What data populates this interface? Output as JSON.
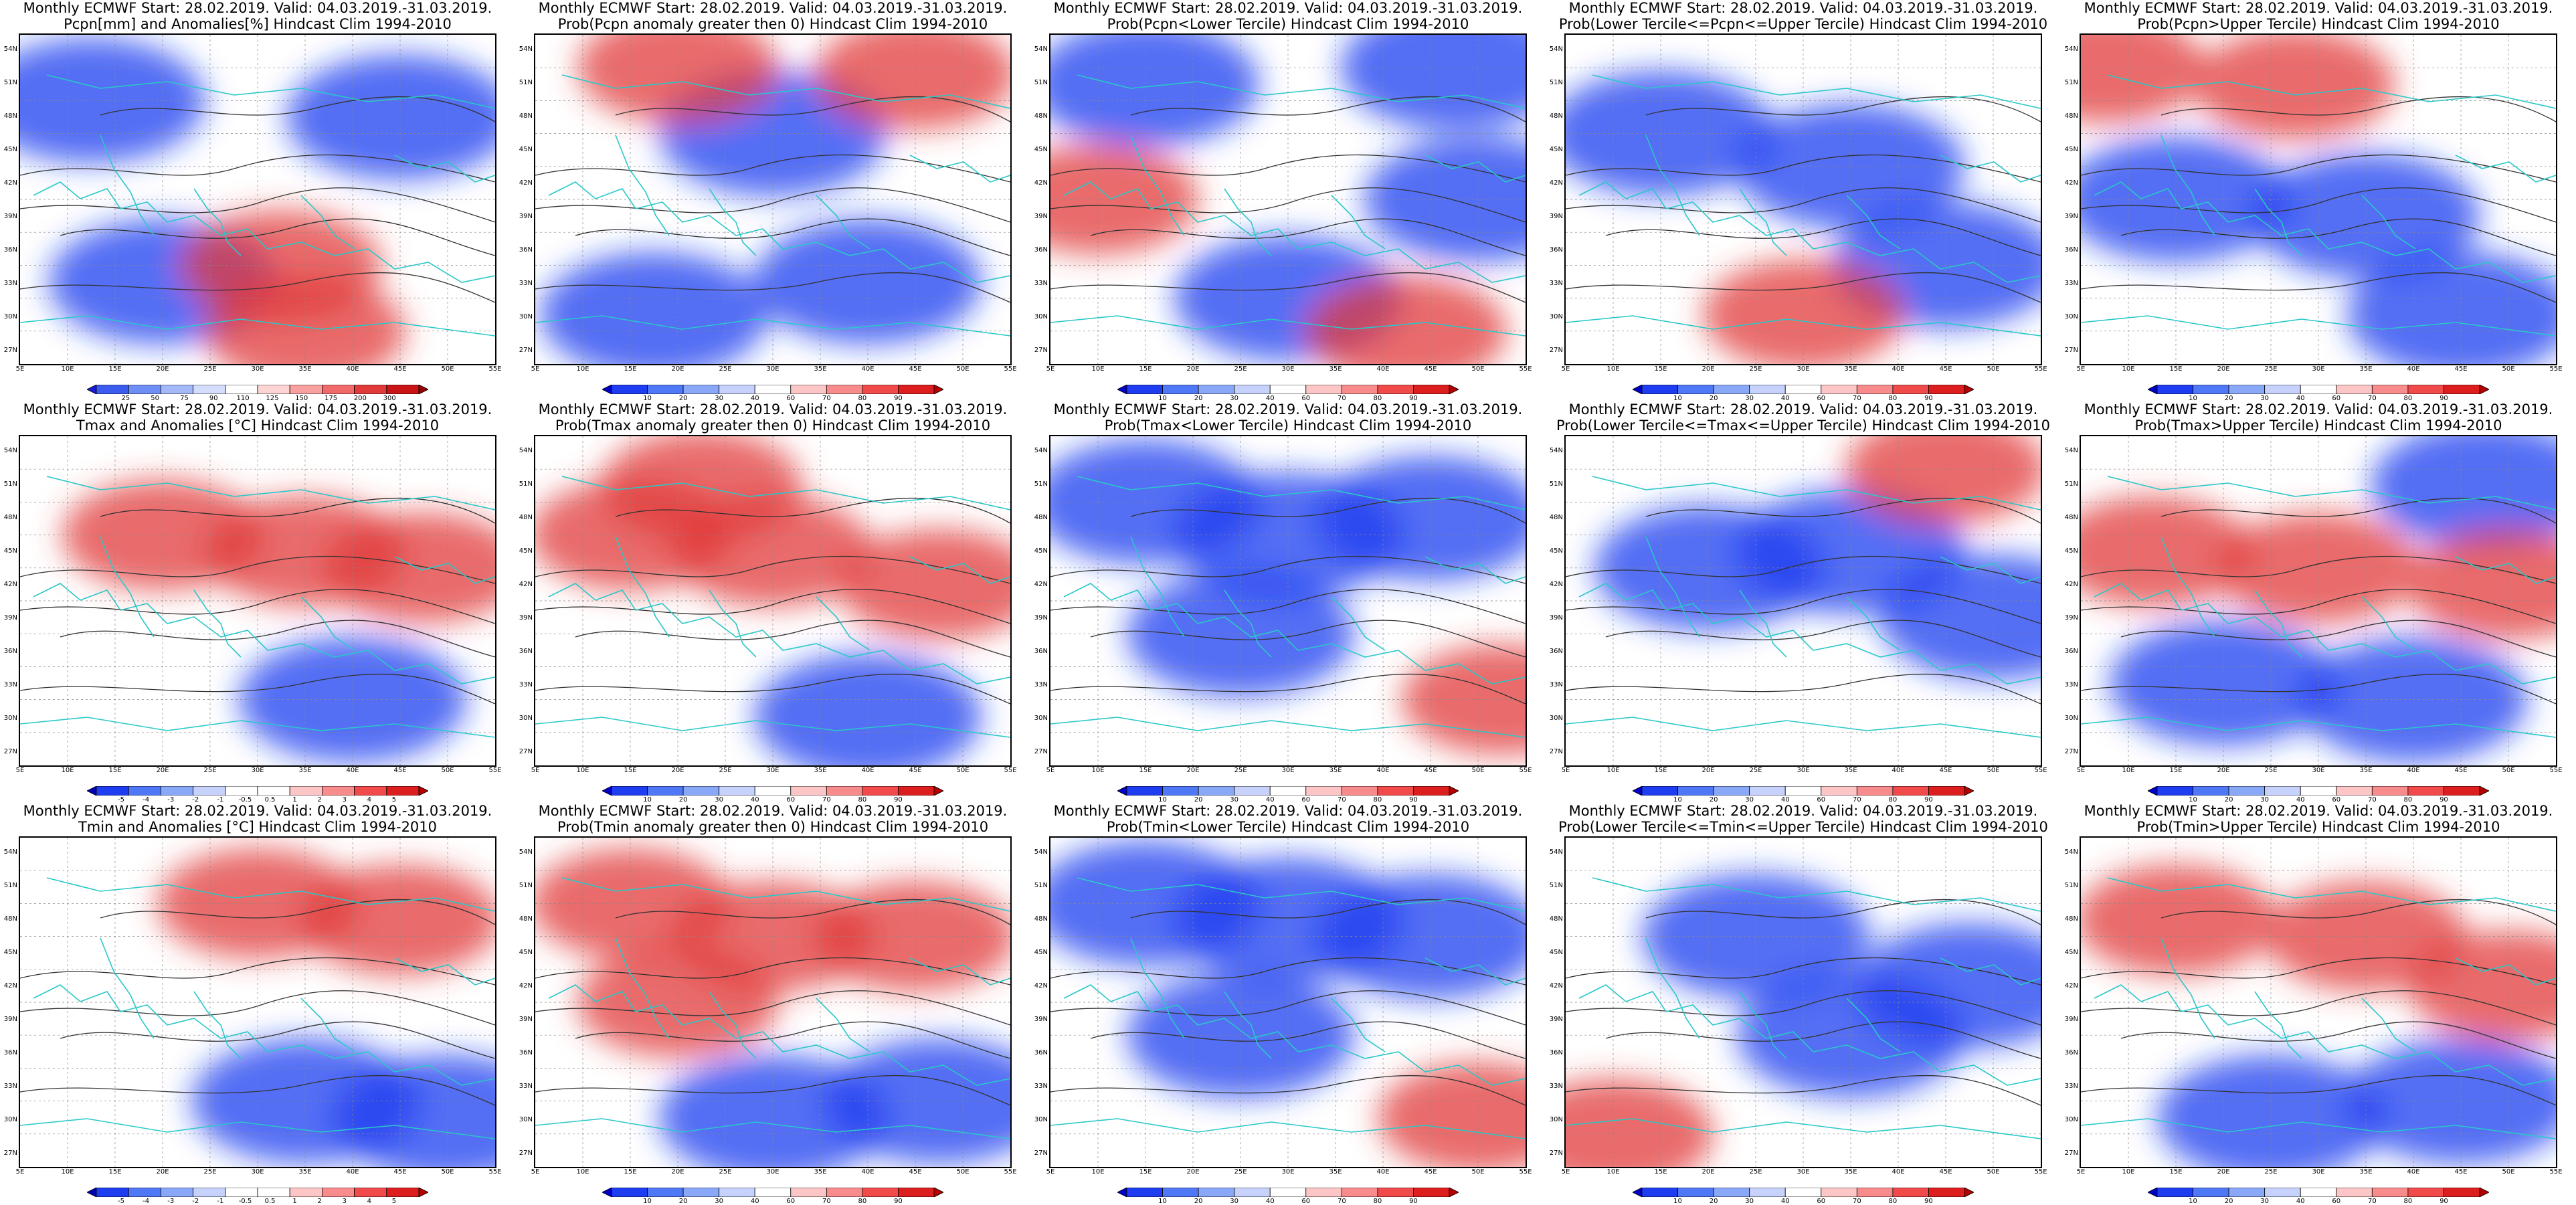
{
  "panels": [
    {
      "id": "p11",
      "row": 0,
      "col": 0,
      "title1": "Monthly ECMWF Start: 28.02.2019. Valid: 04.03.2019.-31.03.2019.",
      "title2": "Pcpn[mm] and Anomalies[%] Hindcast Clim 1994-2010",
      "scale": "pcpn",
      "hot": [
        [
          0.6,
          0.9
        ],
        [
          0.55,
          0.7
        ]
      ],
      "cold": [
        [
          0.15,
          0.2
        ],
        [
          0.8,
          0.25
        ],
        [
          0.3,
          0.75
        ]
      ]
    },
    {
      "id": "p12",
      "row": 0,
      "col": 1,
      "title1": "Monthly ECMWF Start: 28.02.2019. Valid: 04.03.2019.-31.03.2019.",
      "title2": "Prob(Pcpn anomaly greater then 0) Hindcast Clim 1994-2010",
      "scale": "prob",
      "hot": [
        [
          0.3,
          0.1
        ],
        [
          0.8,
          0.12
        ]
      ],
      "cold": [
        [
          0.25,
          0.85
        ],
        [
          0.7,
          0.75
        ],
        [
          0.5,
          0.3
        ]
      ]
    },
    {
      "id": "p13",
      "row": 0,
      "col": 2,
      "title1": "Monthly ECMWF Start: 28.02.2019. Valid: 04.03.2019.-31.03.2019.",
      "title2": "Prob(Pcpn<Lower Tercile) Hindcast Clim 1994-2010",
      "scale": "prob",
      "hot": [
        [
          0.1,
          0.5
        ],
        [
          0.75,
          0.9
        ]
      ],
      "cold": [
        [
          0.2,
          0.15
        ],
        [
          0.85,
          0.1
        ],
        [
          0.5,
          0.8
        ],
        [
          0.9,
          0.5
        ]
      ]
    },
    {
      "id": "p14",
      "row": 0,
      "col": 3,
      "title1": "Monthly ECMWF Start: 28.02.2019. Valid: 04.03.2019.-31.03.2019.",
      "title2": "Prob(Lower Tercile<=Pcpn<=Upper Tercile) Hindcast Clim 1994-2010",
      "scale": "prob",
      "hot": [
        [
          0.5,
          0.85
        ]
      ],
      "cold": [
        [
          0.2,
          0.3
        ],
        [
          0.6,
          0.4
        ],
        [
          0.8,
          0.7
        ]
      ]
    },
    {
      "id": "p15",
      "row": 0,
      "col": 4,
      "title1": "Monthly ECMWF Start: 28.02.2019. Valid: 04.03.2019.-31.03.2019.",
      "title2": "Prob(Pcpn>Upper Tercile) Hindcast Clim 1994-2010",
      "scale": "prob",
      "hot": [
        [
          0.05,
          0.1
        ],
        [
          0.45,
          0.15
        ]
      ],
      "cold": [
        [
          0.2,
          0.5
        ],
        [
          0.6,
          0.55
        ],
        [
          0.8,
          0.85
        ]
      ]
    },
    {
      "id": "p21",
      "row": 1,
      "col": 0,
      "title1": "Monthly ECMWF Start: 28.02.2019. Valid: 04.03.2019.-31.03.2019.",
      "title2": "Tmax and Anomalies [°C] Hindcast Clim 1994-2010",
      "scale": "temp",
      "hot": [
        [
          0.3,
          0.3
        ],
        [
          0.6,
          0.35
        ],
        [
          0.85,
          0.4
        ]
      ],
      "cold": [
        [
          0.7,
          0.8
        ]
      ]
    },
    {
      "id": "p22",
      "row": 1,
      "col": 1,
      "title1": "Monthly ECMWF Start: 28.02.2019. Valid: 04.03.2019.-31.03.2019.",
      "title2": "Prob(Tmax anomaly greater then 0) Hindcast Clim 1994-2010",
      "scale": "prob",
      "hot": [
        [
          0.2,
          0.3
        ],
        [
          0.5,
          0.35
        ],
        [
          0.85,
          0.45
        ],
        [
          0.35,
          0.15
        ]
      ],
      "cold": [
        [
          0.7,
          0.85
        ]
      ]
    },
    {
      "id": "p23",
      "row": 1,
      "col": 2,
      "title1": "Monthly ECMWF Start: 28.02.2019. Valid: 04.03.2019.-31.03.2019.",
      "title2": "Prob(Tmax<Lower Tercile) Hindcast Clim 1994-2010",
      "scale": "prob",
      "hot": [
        [
          0.95,
          0.8
        ]
      ],
      "cold": [
        [
          0.2,
          0.2
        ],
        [
          0.5,
          0.3
        ],
        [
          0.8,
          0.25
        ],
        [
          0.4,
          0.6
        ]
      ]
    },
    {
      "id": "p24",
      "row": 1,
      "col": 3,
      "title1": "Monthly ECMWF Start: 28.02.2019. Valid: 04.03.2019.-31.03.2019.",
      "title2": "Prob(Lower Tercile<=Tmax<=Upper Tercile) Hindcast Clim 1994-2010",
      "scale": "prob",
      "hot": [
        [
          0.8,
          0.1
        ]
      ],
      "cold": [
        [
          0.3,
          0.4
        ],
        [
          0.6,
          0.35
        ],
        [
          0.9,
          0.55
        ]
      ]
    },
    {
      "id": "p25",
      "row": 1,
      "col": 4,
      "title1": "Monthly ECMWF Start: 28.02.2019. Valid: 04.03.2019.-31.03.2019.",
      "title2": "Prob(Tmax>Upper Tercile) Hindcast Clim 1994-2010",
      "scale": "prob",
      "hot": [
        [
          0.15,
          0.35
        ],
        [
          0.5,
          0.4
        ],
        [
          0.9,
          0.45
        ]
      ],
      "cold": [
        [
          0.3,
          0.75
        ],
        [
          0.7,
          0.8
        ],
        [
          0.85,
          0.15
        ]
      ]
    },
    {
      "id": "p31",
      "row": 2,
      "col": 0,
      "title1": "Monthly ECMWF Start: 28.02.2019. Valid: 04.03.2019.-31.03.2019.",
      "title2": "Tmin and Anomalies [°C] Hindcast Clim 1994-2010",
      "scale": "temp",
      "hot": [
        [
          0.5,
          0.2
        ],
        [
          0.8,
          0.25
        ]
      ],
      "cold": [
        [
          0.6,
          0.8
        ],
        [
          0.9,
          0.85
        ]
      ]
    },
    {
      "id": "p32",
      "row": 2,
      "col": 1,
      "title1": "Monthly ECMWF Start: 28.02.2019. Valid: 04.03.2019.-31.03.2019.",
      "title2": "Prob(Tmin anomaly greater then 0) Hindcast Clim 1994-2010",
      "scale": "prob",
      "hot": [
        [
          0.2,
          0.2
        ],
        [
          0.5,
          0.3
        ],
        [
          0.8,
          0.3
        ],
        [
          0.3,
          0.5
        ]
      ],
      "cold": [
        [
          0.85,
          0.8
        ],
        [
          0.5,
          0.85
        ]
      ]
    },
    {
      "id": "p33",
      "row": 2,
      "col": 2,
      "title1": "Monthly ECMWF Start: 28.02.2019. Valid: 04.03.2019.-31.03.2019.",
      "title2": "Prob(Tmin<Lower Tercile) Hindcast Clim 1994-2010",
      "scale": "prob",
      "hot": [
        [
          0.9,
          0.85
        ]
      ],
      "cold": [
        [
          0.2,
          0.2
        ],
        [
          0.5,
          0.25
        ],
        [
          0.8,
          0.3
        ],
        [
          0.4,
          0.6
        ]
      ]
    },
    {
      "id": "p34",
      "row": 2,
      "col": 3,
      "title1": "Monthly ECMWF Start: 28.02.2019. Valid: 04.03.2019.-31.03.2019.",
      "title2": "Prob(Lower Tercile<=Tmin<=Upper Tercile) Hindcast Clim 1994-2010",
      "scale": "prob",
      "hot": [
        [
          0.1,
          0.9
        ]
      ],
      "cold": [
        [
          0.4,
          0.3
        ],
        [
          0.85,
          0.45
        ],
        [
          0.6,
          0.6
        ]
      ]
    },
    {
      "id": "p35",
      "row": 2,
      "col": 4,
      "title1": "Monthly ECMWF Start: 28.02.2019. Valid: 04.03.2019.-31.03.2019.",
      "title2": "Prob(Tmin>Upper Tercile) Hindcast Clim 1994-2010",
      "scale": "prob",
      "hot": [
        [
          0.2,
          0.25
        ],
        [
          0.6,
          0.3
        ],
        [
          0.9,
          0.45
        ]
      ],
      "cold": [
        [
          0.4,
          0.85
        ],
        [
          0.8,
          0.8
        ]
      ]
    }
  ],
  "lat_labels": [
    "54N",
    "51N",
    "48N",
    "45N",
    "42N",
    "39N",
    "36N",
    "33N",
    "30N",
    "27N"
  ],
  "lon_labels": [
    "5E",
    "10E",
    "15E",
    "20E",
    "25E",
    "30E",
    "35E",
    "40E",
    "45E",
    "50E",
    "55E"
  ],
  "colorbars": {
    "pcpn": {
      "colors": [
        "#1a1ad8",
        "#3c5cf0",
        "#6f8ef5",
        "#a4b8f8",
        "#d4ddfb",
        "#ffffff",
        "#fdd4d4",
        "#f9a1a1",
        "#f06a6a",
        "#e23a3a",
        "#c81414",
        "#960000"
      ],
      "ticks": [
        "25",
        "50",
        "75",
        "90",
        "110",
        "125",
        "150",
        "175",
        "200",
        "300"
      ]
    },
    "prob": {
      "colors": [
        "#0000c8",
        "#1e3cf0",
        "#4f78f6",
        "#8aa8f8",
        "#c6d2fb",
        "#ffffff",
        "#fcc6c6",
        "#f88c8c",
        "#f04a4a",
        "#dc1e1e",
        "#b40000"
      ],
      "ticks": [
        "10",
        "20",
        "30",
        "40",
        "60",
        "70",
        "80",
        "90"
      ]
    },
    "temp": {
      "colors": [
        "#0000b4",
        "#1e3cf0",
        "#4f78f6",
        "#8aa8f8",
        "#c6d2fb",
        "#ffffff",
        "#ffffff",
        "#fcc6c6",
        "#f88c8c",
        "#f04a4a",
        "#dc1e1e",
        "#b40000"
      ],
      "ticks": [
        "-5",
        "-4",
        "-3",
        "-2",
        "-1",
        "-0.5",
        "0.5",
        "1",
        "2",
        "3",
        "4",
        "5"
      ]
    }
  },
  "colors": {
    "coast": "#29c8c8",
    "contour": "#333333",
    "warm": "#e23a3a",
    "cool": "#1e3cf0"
  }
}
